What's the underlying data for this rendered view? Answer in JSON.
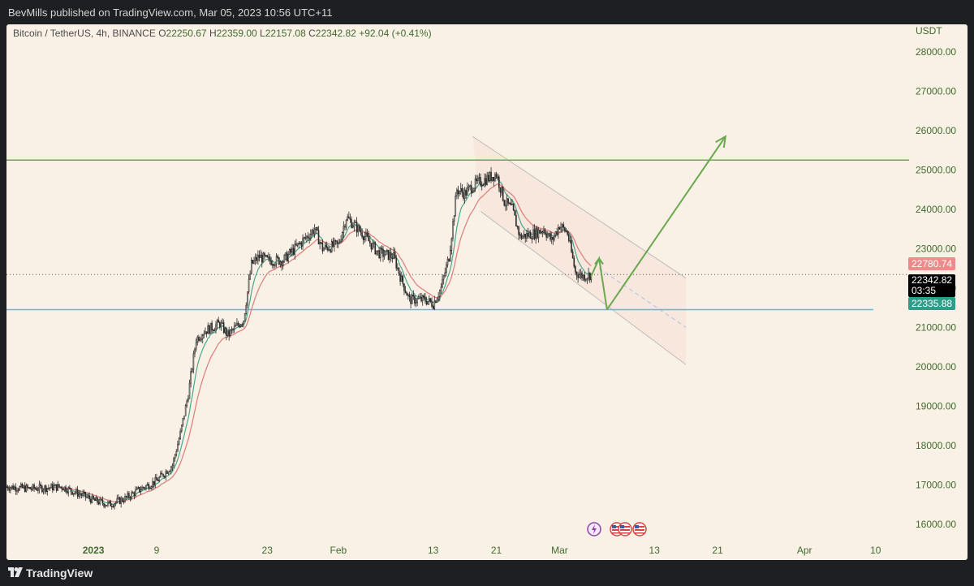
{
  "header": {
    "published_text": "BevMills published on TradingView.com, Mar 05, 2023 10:56 UTC+11"
  },
  "symbol": {
    "name": "Bitcoin / TetherUS, 4h, BINANCE",
    "open_label": "O",
    "open": "22250.67",
    "high_label": "H",
    "high": "22359.00",
    "low_label": "L",
    "low": "22157.08",
    "close_label": "C",
    "close": "22342.82",
    "change": "+92.04 (+0.41%)"
  },
  "footer": {
    "brand": "TradingView"
  },
  "colors": {
    "background": "#faf1e6",
    "up_trend_line": "#6aa84f",
    "support_line": "#4ec3d6",
    "ema_fast": "#4aa78f",
    "ema_slow": "#e07a7a",
    "candles": "#2b2b2b",
    "price_tag_close": "#000000",
    "price_tag_ma_red": "#f08a8a",
    "price_tag_ma_green": "#2e9e8a"
  },
  "icons": [
    "lightning-icon",
    "us-flag-icon",
    "us-flag-icon",
    "us-flag-icon"
  ],
  "chart_data": {
    "type": "candlestick",
    "interval": "4h",
    "currency_label": "USDT",
    "y_ticks": [
      "28000.00",
      "27000.00",
      "26000.00",
      "25000.00",
      "24000.00",
      "23000.00",
      "22000.00",
      "21000.00",
      "20000.00",
      "19000.00",
      "18000.00",
      "17000.00",
      "16000.00"
    ],
    "ylim": [
      15500,
      28700
    ],
    "x_ticks": [
      "2023",
      "9",
      "23",
      "Feb",
      "13",
      "21",
      "Mar",
      "13",
      "21",
      "Apr",
      "10"
    ],
    "x_tick_dates": [
      "2023-01-01",
      "2023-01-09",
      "2023-01-23",
      "2023-02-01",
      "2023-02-13",
      "2023-02-21",
      "2023-03-01",
      "2023-03-13",
      "2023-03-21",
      "2023-04-01",
      "2023-04-10"
    ],
    "x_range": [
      "2022-12-21",
      "2023-04-13"
    ],
    "price_path": [
      [
        "2022-12-21",
        16950
      ],
      [
        "2022-12-24",
        16900
      ],
      [
        "2022-12-28",
        16950
      ],
      [
        "2022-12-31",
        16700
      ],
      [
        "2023-01-01",
        16600
      ],
      [
        "2023-01-03",
        16500
      ],
      [
        "2023-01-05",
        16650
      ],
      [
        "2023-01-07",
        16900
      ],
      [
        "2023-01-09",
        17100
      ],
      [
        "2023-01-11",
        17500
      ],
      [
        "2023-01-12",
        18300
      ],
      [
        "2023-01-13",
        19300
      ],
      [
        "2023-01-14",
        20700
      ],
      [
        "2023-01-15",
        20900
      ],
      [
        "2023-01-17",
        21100
      ],
      [
        "2023-01-18",
        20800
      ],
      [
        "2023-01-20",
        21200
      ],
      [
        "2023-01-21",
        22600
      ],
      [
        "2023-01-22",
        22800
      ],
      [
        "2023-01-23",
        22700
      ],
      [
        "2023-01-25",
        22700
      ],
      [
        "2023-01-27",
        23100
      ],
      [
        "2023-01-29",
        23500
      ],
      [
        "2023-01-30",
        23000
      ],
      [
        "2023-02-01",
        23100
      ],
      [
        "2023-02-02",
        23800
      ],
      [
        "2023-02-04",
        23400
      ],
      [
        "2023-02-06",
        22900
      ],
      [
        "2023-02-08",
        22800
      ],
      [
        "2023-02-09",
        22200
      ],
      [
        "2023-02-10",
        21700
      ],
      [
        "2023-02-12",
        21700
      ],
      [
        "2023-02-13",
        21600
      ],
      [
        "2023-02-14",
        22000
      ],
      [
        "2023-02-15",
        22800
      ],
      [
        "2023-02-16",
        24500
      ],
      [
        "2023-02-17",
        24400
      ],
      [
        "2023-02-18",
        24600
      ],
      [
        "2023-02-20",
        24800
      ],
      [
        "2023-02-21",
        24900
      ],
      [
        "2023-02-22",
        24200
      ],
      [
        "2023-02-23",
        24000
      ],
      [
        "2023-02-24",
        23300
      ],
      [
        "2023-02-26",
        23400
      ],
      [
        "2023-02-27",
        23500
      ],
      [
        "2023-02-28",
        23200
      ],
      [
        "2023-03-01",
        23600
      ],
      [
        "2023-03-02",
        23400
      ],
      [
        "2023-03-03",
        22400
      ],
      [
        "2023-03-04",
        22300
      ],
      [
        "2023-03-05",
        22343
      ]
    ],
    "horizontal_lines": [
      {
        "name": "resistance",
        "price": 25250,
        "color": "#6aa84f"
      },
      {
        "name": "support",
        "price": 21450,
        "color": "#4ec3d6"
      }
    ],
    "channel": {
      "upper": [
        [
          "2023-02-18",
          25850
        ],
        [
          "2023-03-17",
          22250
        ]
      ],
      "lower": [
        [
          "2023-02-19",
          23950
        ],
        [
          "2023-03-17",
          20050
        ]
      ],
      "mid": [
        [
          "2023-03-06",
          22500
        ],
        [
          "2023-03-17",
          21000
        ]
      ]
    },
    "projection_arrows": [
      [
        [
          "2023-03-05",
          22300
        ],
        [
          "2023-03-06",
          22750
        ],
        [
          "2023-03-07",
          21450
        ]
      ],
      [
        [
          "2023-03-07",
          21450
        ],
        [
          "2023-03-22",
          25850
        ]
      ]
    ],
    "current_price": {
      "value": "22342.82",
      "countdown": "03:35"
    },
    "ema_slow_value": "22780.74",
    "ema_fast_value": "22335.88"
  }
}
